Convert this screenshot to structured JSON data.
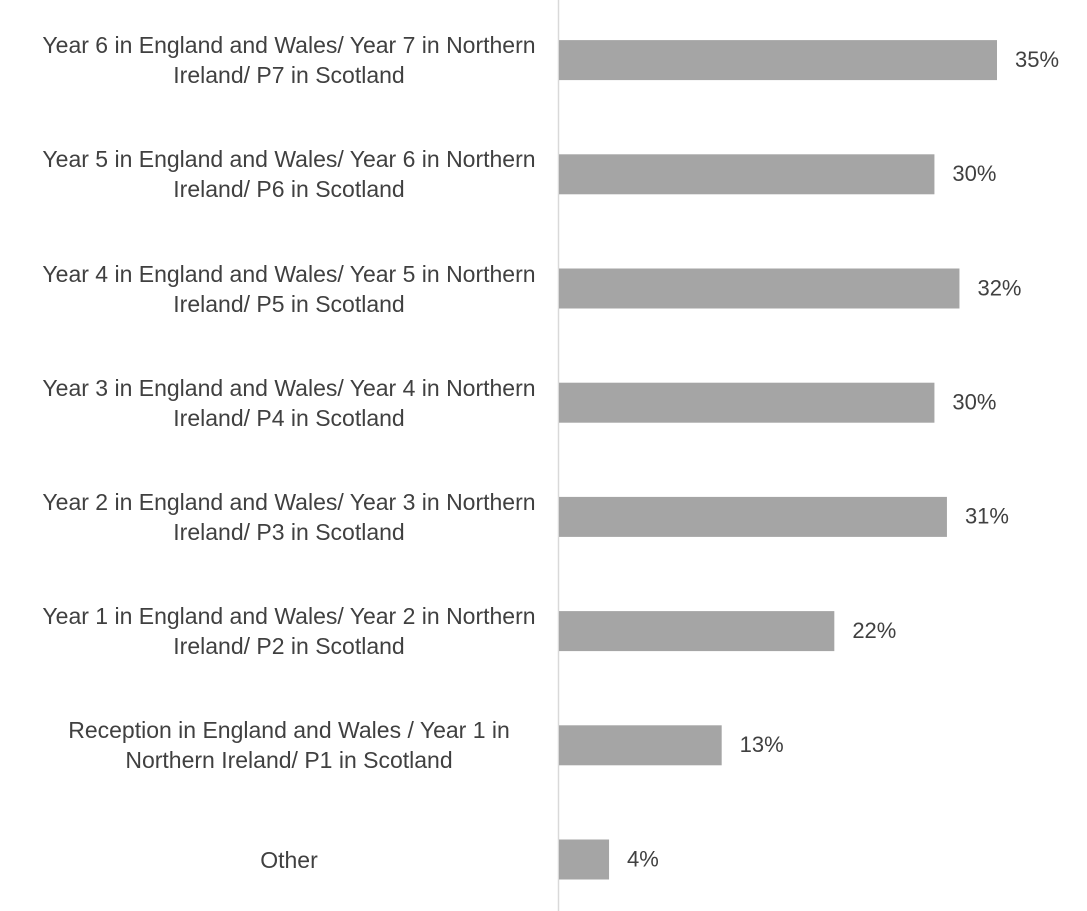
{
  "chart_data": {
    "type": "bar",
    "orientation": "horizontal",
    "color": "#a5a5a5",
    "categories": [
      "Year 6 in England and Wales/ Year 7 in Northern Ireland/ P7 in Scotland",
      "Year 5 in England and Wales/ Year 6 in Northern Ireland/ P6 in Scotland",
      "Year 4 in England and Wales/ Year 5 in Northern Ireland/ P5 in Scotland",
      "Year 3 in England and Wales/ Year 4 in Northern Ireland/ P4 in Scotland",
      "Year 2 in England and Wales/ Year 3 in Northern Ireland/ P3 in Scotland",
      "Year 1 in England and Wales/ Year 2 in Northern Ireland/ P2 in Scotland",
      "Reception in England and Wales / Year 1 in Northern Ireland/ P1 in Scotland",
      "Other"
    ],
    "values": [
      35,
      30,
      32,
      30,
      31,
      22,
      13,
      4
    ],
    "value_labels": [
      "35%",
      "30%",
      "32%",
      "30%",
      "31%",
      "22%",
      "13%",
      "4%"
    ]
  }
}
